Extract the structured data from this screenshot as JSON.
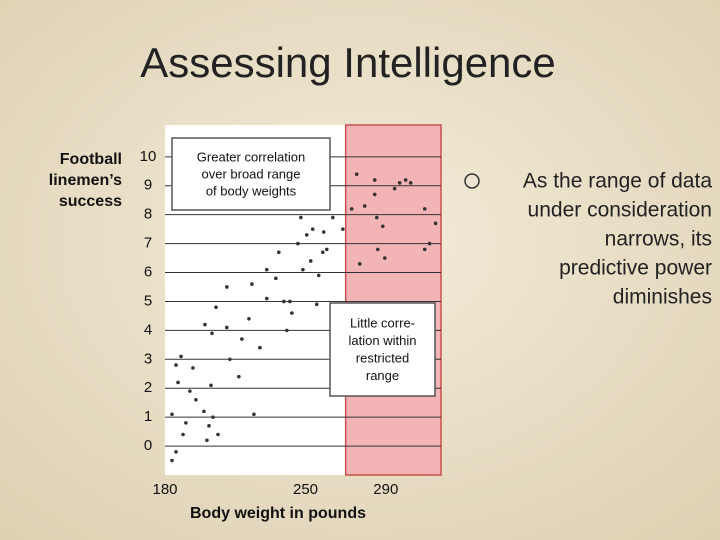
{
  "slide": {
    "title": "Assessing Intelligence",
    "bullet": [
      "As the range of data",
      "under consideration",
      "narrows, its",
      "predictive power",
      "diminishes"
    ]
  },
  "chart_data": {
    "type": "scatter",
    "y_label": [
      "Football",
      "linemen’s",
      "success"
    ],
    "x_label": "Body weight in pounds",
    "annotations": [
      {
        "lines": [
          "Greater correlation",
          "over broad range",
          "of body weights"
        ]
      },
      {
        "lines": [
          "Little corre-",
          "lation within",
          "restricted",
          "range"
        ]
      }
    ],
    "x": [
      183.5,
      185.5,
      183.5,
      189.0,
      190.4,
      185.5,
      188.0,
      186.5,
      192.4,
      193.9,
      195.4,
      199.4,
      201.9,
      200.9,
      203.9,
      202.9,
      206.4,
      199.9,
      203.4,
      205.4,
      210.8,
      212.3,
      210.8,
      216.8,
      218.3,
      223.3,
      221.8,
      224.3,
      227.3,
      230.7,
      230.7,
      235.2,
      236.7,
      239.2,
      240.7,
      242.2,
      243.2,
      246.2,
      247.7,
      248.7,
      250.6,
      253.6,
      252.6,
      255.6,
      256.6,
      258.6,
      260.6,
      259.1,
      263.6,
      268.6,
      273.0,
      275.5,
      277.0,
      279.5,
      284.5,
      284.5,
      288.5,
      285.5,
      286.0,
      289.5,
      294.4,
      296.9,
      299.9,
      302.4,
      309.4,
      311.8,
      314.8,
      309.4
    ],
    "values": [
      -0.5,
      -0.2,
      1.1,
      0.4,
      0.8,
      2.8,
      3.1,
      2.2,
      1.9,
      2.7,
      1.6,
      1.2,
      0.7,
      0.2,
      1.0,
      2.1,
      0.4,
      4.2,
      3.9,
      4.8,
      4.1,
      3.0,
      5.5,
      2.4,
      3.7,
      5.6,
      4.4,
      1.1,
      3.4,
      5.1,
      6.1,
      5.8,
      6.7,
      5.0,
      4.0,
      5.0,
      4.6,
      7.0,
      7.9,
      6.1,
      7.3,
      7.5,
      6.4,
      4.9,
      5.9,
      6.7,
      6.8,
      7.4,
      7.9,
      7.5,
      8.2,
      9.4,
      6.3,
      8.3,
      8.7,
      9.2,
      7.6,
      7.9,
      6.8,
      6.5,
      8.9,
      9.1,
      9.2,
      9.1,
      8.2,
      7.0,
      7.7,
      6.8
    ],
    "color": "#333333",
    "xlim": [
      180,
      317.5
    ],
    "xticks": [
      180,
      250,
      290
    ],
    "ylim": [
      -1,
      11.1
    ],
    "yticks": [
      0,
      1,
      2,
      3,
      4,
      5,
      6,
      7,
      8,
      9,
      10
    ],
    "grid": true,
    "shaded_xrange": [
      270,
      317.5
    ],
    "shade_color": "#f3b4b6"
  }
}
